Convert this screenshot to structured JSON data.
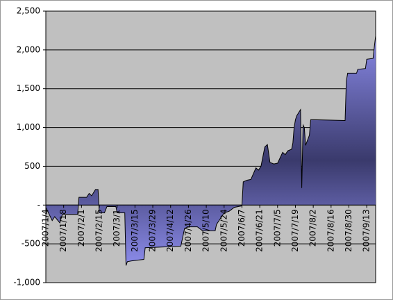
{
  "chart_data": {
    "type": "area",
    "x": [
      "2007/1/4",
      "2007/1/9",
      "2007/1/11",
      "2007/1/15",
      "2007/1/17",
      "2007/1/22",
      "2007/1/29",
      "2007/1/30",
      "2007/2/5",
      "2007/2/7",
      "2007/2/9",
      "2007/2/12",
      "2007/2/14",
      "2007/2/15",
      "2007/2/19",
      "2007/2/21",
      "2007/2/28",
      "2007/3/1",
      "2007/3/7",
      "2007/3/8",
      "2007/3/9",
      "2007/3/12",
      "2007/3/22",
      "2007/3/23",
      "2007/4/20",
      "2007/4/23",
      "2007/4/26",
      "2007/5/3",
      "2007/5/7",
      "2007/5/17",
      "2007/5/18",
      "2007/5/24",
      "2007/5/28",
      "2007/6/1",
      "2007/6/7",
      "2007/6/8",
      "2007/6/11",
      "2007/6/14",
      "2007/6/18",
      "2007/6/20",
      "2007/6/22",
      "2007/6/25",
      "2007/6/27",
      "2007/6/29",
      "2007/7/2",
      "2007/7/5",
      "2007/7/9",
      "2007/7/11",
      "2007/7/13",
      "2007/7/16",
      "2007/7/17",
      "2007/7/18",
      "2007/7/19",
      "2007/7/20",
      "2007/7/23",
      "2007/7/24",
      "2007/7/25",
      "2007/7/26",
      "2007/7/27",
      "2007/7/30",
      "2007/7/31",
      "2007/8/2",
      "2007/8/27",
      "2007/8/28",
      "2007/8/29",
      "2007/9/5",
      "2007/9/6",
      "2007/9/12",
      "2007/9/13",
      "2007/9/18",
      "2007/9/19",
      "2007/9/20"
    ],
    "values": [
      -30,
      -200,
      -150,
      -230,
      -120,
      -120,
      -120,
      100,
      100,
      150,
      120,
      200,
      200,
      -100,
      -100,
      -20,
      -20,
      -100,
      -100,
      -780,
      -730,
      -720,
      -700,
      -550,
      -530,
      -300,
      -280,
      -280,
      -330,
      -330,
      -250,
      -100,
      -80,
      -30,
      -10,
      300,
      320,
      330,
      480,
      450,
      500,
      750,
      780,
      550,
      530,
      540,
      680,
      650,
      700,
      720,
      800,
      1000,
      1100,
      1150,
      1230,
      220,
      1030,
      1000,
      770,
      900,
      1100,
      1100,
      1090,
      1600,
      1700,
      1700,
      1750,
      1760,
      1880,
      1890,
      2050,
      2180
    ],
    "color": "#9999ff",
    "xlim": [
      "2007/1/4",
      "2007/9/20"
    ],
    "xticks": [
      "2007/1/4",
      "2007/1/18",
      "2007/2/1",
      "2007/2/15",
      "2007/3/1",
      "2007/3/15",
      "2007/3/29",
      "2007/4/12",
      "2007/4/26",
      "2007/5/10",
      "2007/5/24",
      "2007/6/7",
      "2007/6/21",
      "2007/7/5",
      "2007/7/19",
      "2007/8/2",
      "2007/8/16",
      "2007/8/30",
      "2007/9/13"
    ],
    "ylim": [
      -1000,
      2500
    ],
    "yticks": [
      {
        "value": -1000,
        "label": "-1,000"
      },
      -500,
      {
        "value": 0,
        "label": "-"
      },
      500,
      {
        "value": 1000,
        "label": "1,000"
      },
      {
        "value": 1500,
        "label": "1,500"
      },
      {
        "value": 2000,
        "label": "2,000"
      },
      {
        "value": 2500,
        "label": "2,500"
      }
    ],
    "grid": true
  }
}
